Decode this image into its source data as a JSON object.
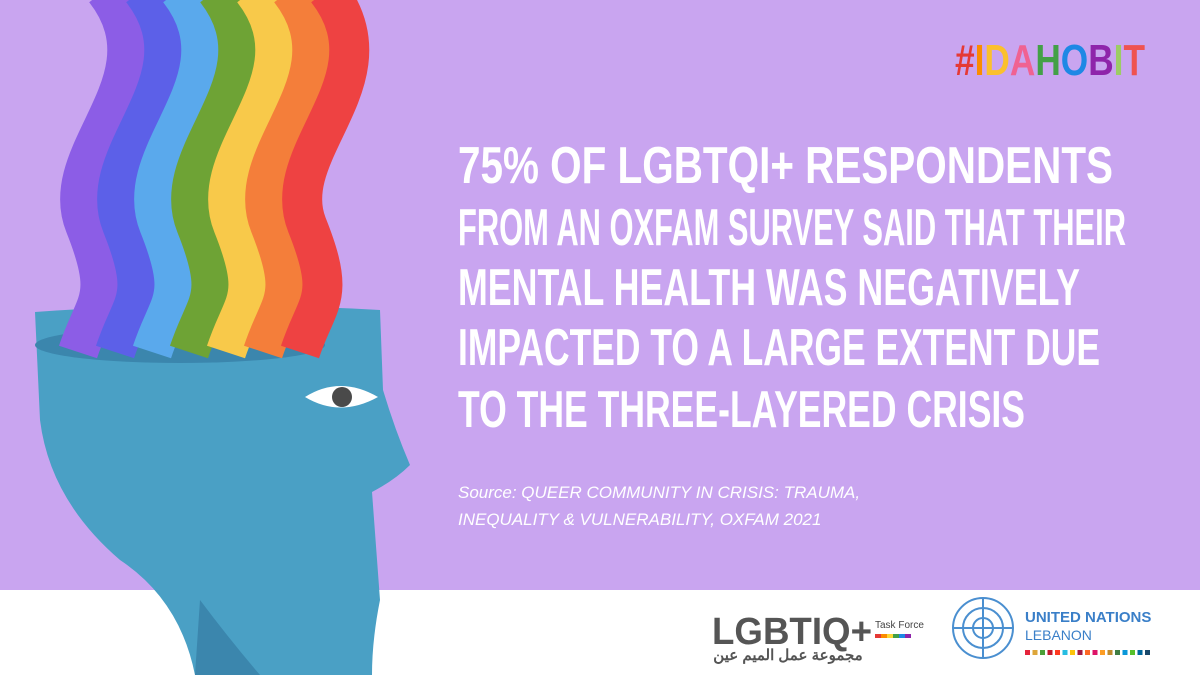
{
  "hashtag": "#IDAHOBIT",
  "headline": [
    "75% OF LGBTQI+ RESPONDENTS",
    "FROM AN OXFAM SURVEY SAID THAT THEIR",
    "MENTAL HEALTH WAS NEGATIVELY",
    "IMPACTED TO A LARGE EXTENT DUE",
    "TO THE THREE-LAYERED CRISIS"
  ],
  "source": [
    "Source: QUEER COMMUNITY IN CRISIS: TRAUMA,",
    "INEQUALITY & VULNERABILITY, OXFAM 2021"
  ],
  "logos": {
    "lgbtiq": {
      "name": "LGBTIQ+",
      "sub": "Task Force",
      "arabic": "مجموعة عمل الميم عين"
    },
    "un": {
      "name": "UNITED NATIONS",
      "country": "LEBANON"
    }
  }
}
